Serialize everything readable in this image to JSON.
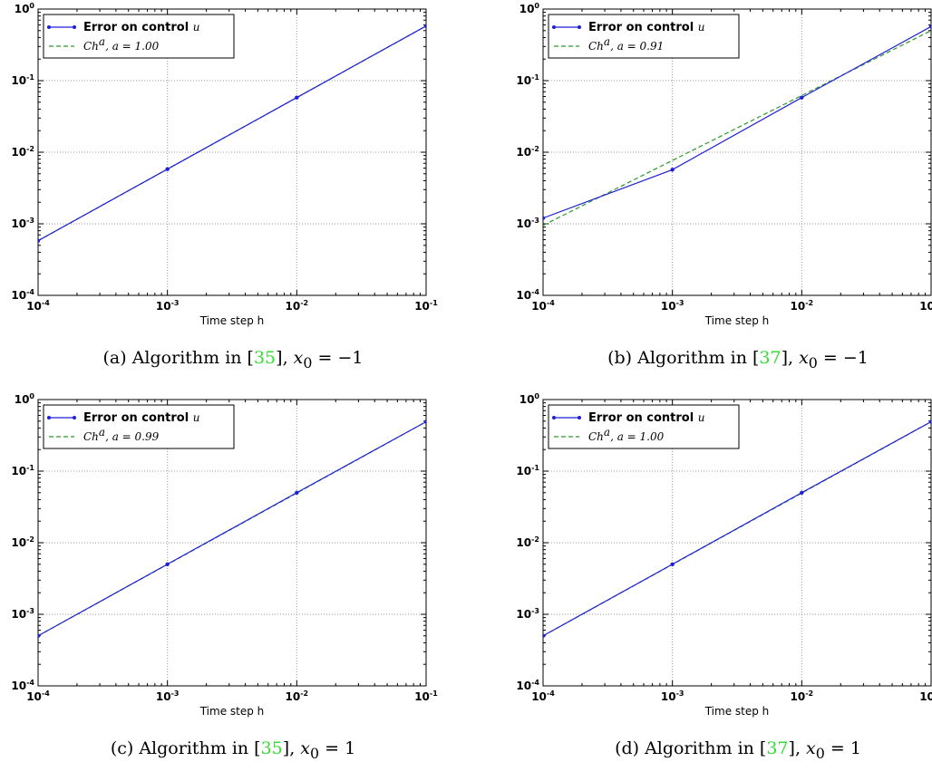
{
  "chart_data": [
    {
      "type": "line",
      "panel_label": "(a)",
      "caption": {
        "prefix": "(a) Algorithm in [",
        "ref": "35",
        "suffix": "], ",
        "var": "x",
        "sub": "0",
        "rel": " = −1"
      },
      "xlabel": "Time step h",
      "xscale": "log",
      "yscale": "log",
      "xlim": [
        0.0001,
        0.1
      ],
      "ylim": [
        0.0001,
        1
      ],
      "grid": true,
      "legend_position": "top-left",
      "series": [
        {
          "name": "Error on control",
          "name_var": "u",
          "x": [
            0.0001,
            0.001,
            0.01,
            0.1
          ],
          "y": [
            0.00058,
            0.0058,
            0.058,
            0.58
          ]
        },
        {
          "name": "Ch",
          "name_sup": "a",
          "name_extra": ",  a = 1.00",
          "x": [
            0.0001,
            0.1
          ],
          "y": [
            0.00058,
            0.58
          ]
        }
      ]
    },
    {
      "type": "line",
      "panel_label": "(b)",
      "caption": {
        "prefix": "(b) Algorithm in [",
        "ref": "37",
        "suffix": "], ",
        "var": "x",
        "sub": "0",
        "rel": " = −1"
      },
      "xlabel": "Time step h",
      "xscale": "log",
      "yscale": "log",
      "xlim": [
        0.0001,
        0.1
      ],
      "ylim": [
        0.0001,
        1
      ],
      "grid": true,
      "legend_position": "top-left",
      "series": [
        {
          "name": "Error on control",
          "name_var": "u",
          "x": [
            0.0001,
            0.001,
            0.01,
            0.1
          ],
          "y": [
            0.0012,
            0.0057,
            0.058,
            0.57
          ]
        },
        {
          "name": "Ch",
          "name_sup": "a",
          "name_extra": ",  a = 0.91",
          "x": [
            0.0001,
            0.1
          ],
          "y": [
            0.00095,
            0.5
          ]
        }
      ]
    },
    {
      "type": "line",
      "panel_label": "(c)",
      "caption": {
        "prefix": "(c) Algorithm in [",
        "ref": "35",
        "suffix": "], ",
        "var": "x",
        "sub": "0",
        "rel": " = 1"
      },
      "xlabel": "Time step h",
      "xscale": "log",
      "yscale": "log",
      "xlim": [
        0.0001,
        0.1
      ],
      "ylim": [
        0.0001,
        1
      ],
      "grid": true,
      "legend_position": "top-left",
      "series": [
        {
          "name": "Error on control",
          "name_var": "u",
          "x": [
            0.0001,
            0.001,
            0.01,
            0.1
          ],
          "y": [
            0.0005,
            0.005,
            0.05,
            0.49
          ]
        },
        {
          "name": "Ch",
          "name_sup": "a",
          "name_extra": ",  a = 0.99",
          "x": [
            0.0001,
            0.1
          ],
          "y": [
            0.0005,
            0.49
          ]
        }
      ]
    },
    {
      "type": "line",
      "panel_label": "(d)",
      "caption": {
        "prefix": "(d) Algorithm in [",
        "ref": "37",
        "suffix": "], ",
        "var": "x",
        "sub": "0",
        "rel": " = 1"
      },
      "xlabel": "Time step h",
      "xscale": "log",
      "yscale": "log",
      "xlim": [
        0.0001,
        0.1
      ],
      "ylim": [
        0.0001,
        1
      ],
      "grid": true,
      "legend_position": "top-left",
      "series": [
        {
          "name": "Error on control",
          "name_var": "u",
          "x": [
            0.0001,
            0.001,
            0.01,
            0.1
          ],
          "y": [
            0.0005,
            0.005,
            0.05,
            0.49
          ]
        },
        {
          "name": "Ch",
          "name_sup": "a",
          "name_extra": ",  a = 1.00",
          "x": [
            0.0001,
            0.1
          ],
          "y": [
            0.0005,
            0.49
          ]
        }
      ]
    }
  ],
  "tick_labels": {
    "x": [
      {
        "base": "10",
        "exp": "-4"
      },
      {
        "base": "10",
        "exp": "-3"
      },
      {
        "base": "10",
        "exp": "-2"
      },
      {
        "base": "10",
        "exp": "-1"
      }
    ],
    "y": [
      {
        "base": "10",
        "exp": "-4"
      },
      {
        "base": "10",
        "exp": "-3"
      },
      {
        "base": "10",
        "exp": "-2"
      },
      {
        "base": "10",
        "exp": "-1"
      },
      {
        "base": "10",
        "exp": "0"
      }
    ]
  },
  "colors": {
    "error_series": "#1f1fd6",
    "fit_series": "#2a9a2a",
    "grid": "#999999"
  }
}
